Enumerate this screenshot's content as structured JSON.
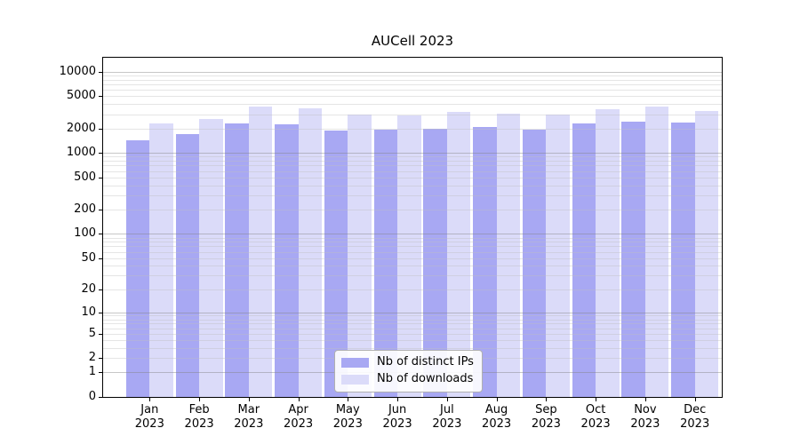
{
  "title": "AUCell 2023",
  "legend": {
    "items": [
      {
        "label": "Nb of distinct IPs",
        "color": "#a8a8f3"
      },
      {
        "label": "Nb of downloads",
        "color": "#dbdbf9"
      }
    ]
  },
  "chart_data": {
    "type": "bar",
    "title": "AUCell 2023",
    "categories": [
      "Jan",
      "Feb",
      "Mar",
      "Apr",
      "May",
      "Jun",
      "Jul",
      "Aug",
      "Sep",
      "Oct",
      "Nov",
      "Dec"
    ],
    "year": "2023",
    "series": [
      {
        "name": "Nb of distinct IPs",
        "color": "#a8a8f3",
        "values": [
          1420,
          1720,
          2330,
          2250,
          1900,
          1930,
          2000,
          2100,
          1920,
          2320,
          2440,
          2390
        ]
      },
      {
        "name": "Nb of downloads",
        "color": "#dbdbf9",
        "values": [
          2290,
          2630,
          3680,
          3530,
          2960,
          2880,
          3210,
          3030,
          2940,
          3440,
          3750,
          3310
        ]
      }
    ],
    "xlabel": "",
    "ylabel": "",
    "yscale": "symlog_log10_1plus_y",
    "yticks": [
      0,
      1,
      2,
      5,
      10,
      20,
      50,
      100,
      200,
      500,
      1000,
      2000,
      5000,
      10000
    ],
    "ygrid_major": [
      1,
      10,
      100,
      1000,
      10000
    ],
    "ylim": [
      0,
      14800
    ],
    "grid": "horizontal",
    "legend_position": "lower center"
  },
  "colors": {
    "bar_distinct_ips": "#a8a8f3",
    "bar_downloads": "#dbdbf9",
    "axis": "#000000",
    "grid_major": "#c6c6c6",
    "grid_minor": "#e4e4e4",
    "background": "#ffffff"
  }
}
